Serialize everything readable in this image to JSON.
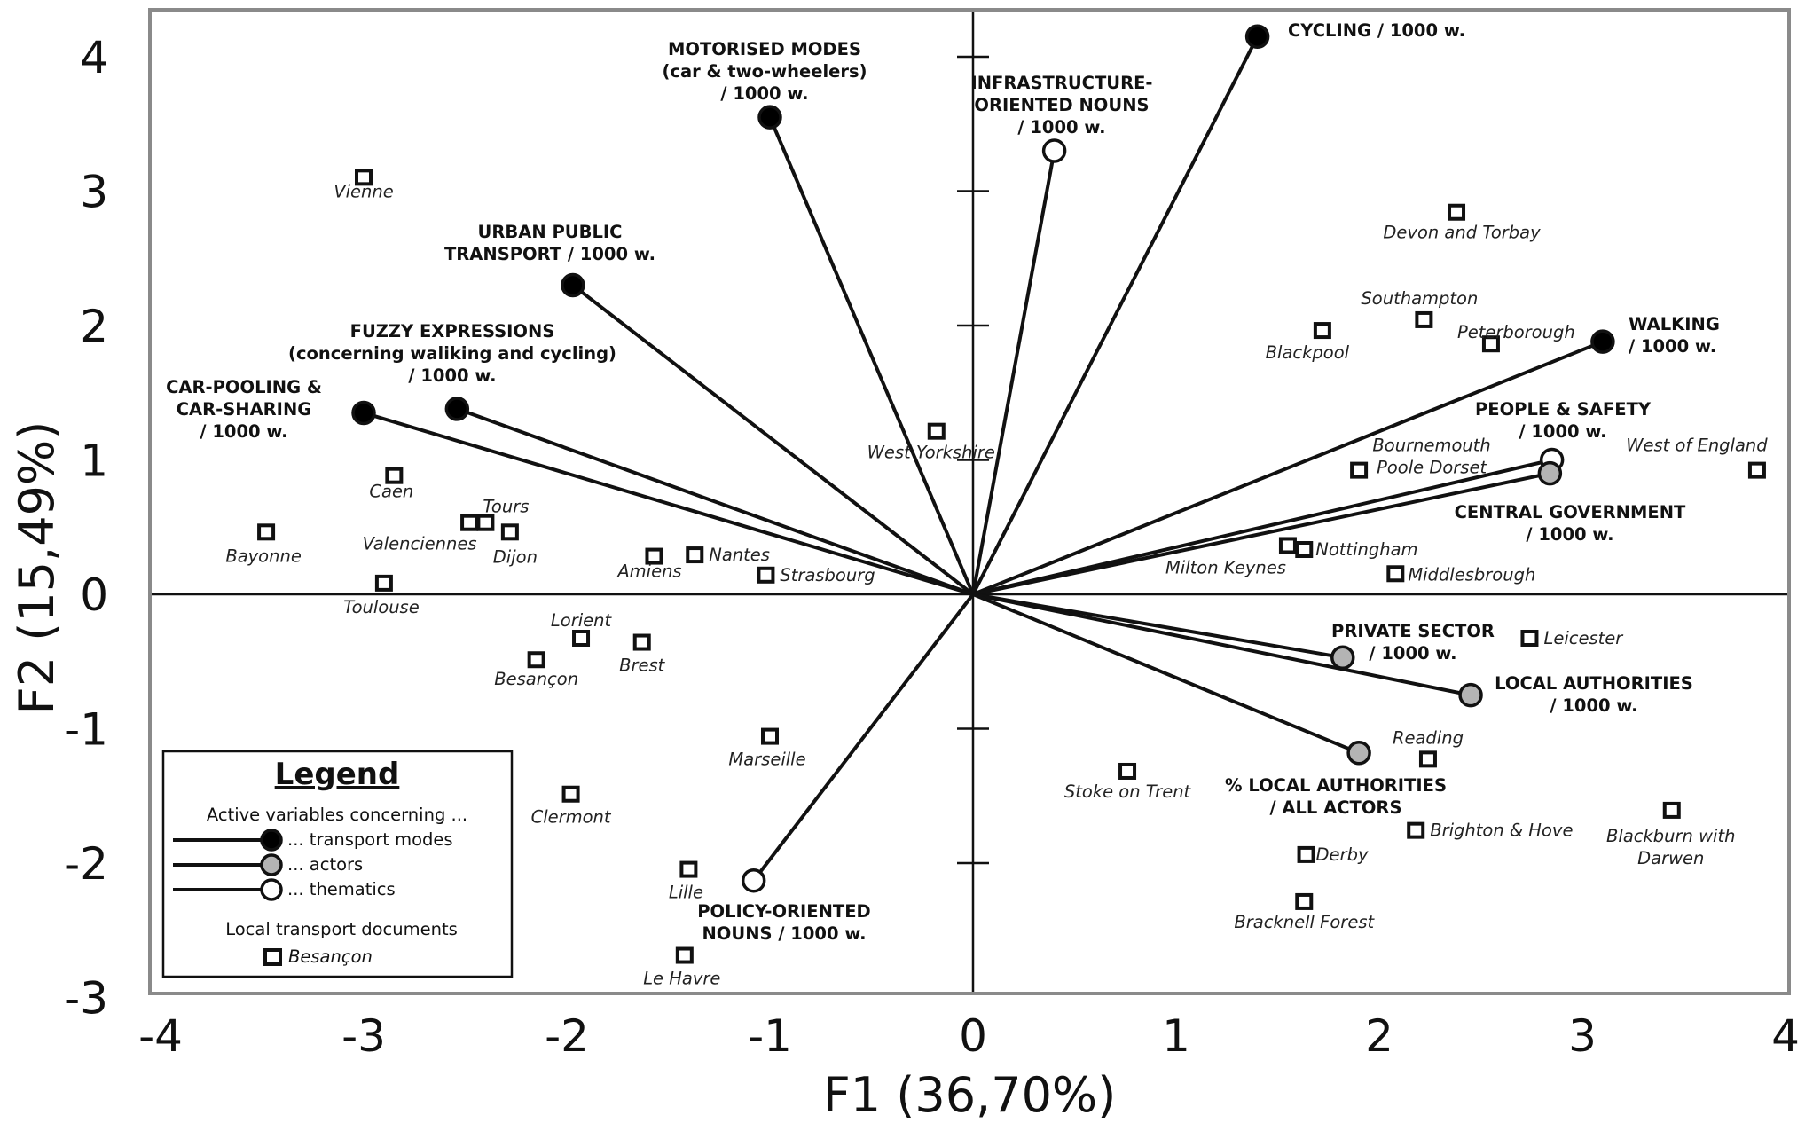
{
  "chart_data": {
    "type": "scatter",
    "xlabel": "F1 (36,70%)",
    "ylabel": "F2 (15,49%)",
    "xlim": [
      -4,
      4
    ],
    "ylim": [
      -3,
      4.3
    ],
    "x_ticks": [
      "-4",
      "-3",
      "-2",
      "-1",
      "0",
      "1",
      "2",
      "3",
      "4"
    ],
    "y_ticks": [
      "-3",
      "-2",
      "-1",
      "0",
      "1",
      "2",
      "3",
      "4"
    ],
    "grid": false,
    "legend": {
      "title": "Legend",
      "placement": "bottom-left",
      "header": "Active variables concerning ...",
      "entries": [
        {
          "label": "... transport modes",
          "fill": "#000000"
        },
        {
          "label": "... actors",
          "fill": "#b4b4b4"
        },
        {
          "label": "... thematics",
          "fill": "#ffffff"
        }
      ],
      "docs_header": "Local transport documents",
      "docs_example": "Besançon"
    },
    "variables": [
      {
        "group": "transport modes",
        "x": 1.4,
        "y": 4.15,
        "lines": [
          "CYCLING / 1000 w."
        ],
        "anchor": "start",
        "fill": "#000000"
      },
      {
        "group": "transport modes",
        "x": -1.0,
        "y": 3.55,
        "lines": [
          "MOTORISED MODES",
          "(car & two-wheelers)",
          "/ 1000 w."
        ],
        "anchor": "middle",
        "fill": "#000000"
      },
      {
        "group": "transport modes",
        "x": -1.97,
        "y": 2.3,
        "lines": [
          "URBAN PUBLIC",
          "TRANSPORT / 1000 w."
        ],
        "anchor": "middle",
        "fill": "#000000"
      },
      {
        "group": "transport modes",
        "x": -2.54,
        "y": 1.38,
        "lines": [
          "FUZZY EXPRESSIONS",
          "(concerning waliking and cycling)",
          "/ 1000 w."
        ],
        "anchor": "middle",
        "fill": "#000000"
      },
      {
        "group": "transport modes",
        "x": -3.0,
        "y": 1.35,
        "lines": [
          "CAR-POOLING &",
          "CAR-SHARING",
          "/ 1000 w."
        ],
        "anchor": "middle",
        "fill": "#000000"
      },
      {
        "group": "transport modes",
        "x": 3.1,
        "y": 1.88,
        "lines": [
          "WALKING",
          "/ 1000 w."
        ],
        "anchor": "start",
        "fill": "#000000"
      },
      {
        "group": "thematics",
        "x": 0.4,
        "y": 3.3,
        "lines": [
          "INFRASTRUCTURE-",
          "ORIENTED NOUNS",
          "/ 1000 w."
        ],
        "anchor": "middle",
        "fill": "#ffffff"
      },
      {
        "group": "thematics",
        "x": 2.85,
        "y": 1.0,
        "lines": [
          "PEOPLE & SAFETY",
          "/ 1000 w."
        ],
        "anchor": "middle",
        "fill": "#ffffff"
      },
      {
        "group": "thematics",
        "x": -1.08,
        "y": -2.13,
        "lines": [
          "POLICY-ORIENTED",
          "NOUNS / 1000 w."
        ],
        "anchor": "middle",
        "fill": "#ffffff"
      },
      {
        "group": "actors",
        "x": 2.84,
        "y": 0.9,
        "lines": [
          "CENTRAL GOVERNMENT",
          "/ 1000 w."
        ],
        "anchor": "middle",
        "fill": "#b4b4b4"
      },
      {
        "group": "actors",
        "x": 1.82,
        "y": -0.47,
        "lines": [
          "PRIVATE SECTOR",
          "/ 1000 w."
        ],
        "anchor": "middle",
        "fill": "#b4b4b4"
      },
      {
        "group": "actors",
        "x": 2.45,
        "y": -0.75,
        "lines": [
          "LOCAL AUTHORITIES",
          "/ 1000 w."
        ],
        "anchor": "middle",
        "fill": "#b4b4b4"
      },
      {
        "group": "actors",
        "x": 1.9,
        "y": -1.18,
        "lines": [
          "% LOCAL AUTHORITIES",
          "/ ALL ACTORS"
        ],
        "anchor": "middle",
        "fill": "#b4b4b4"
      }
    ],
    "documents": [
      {
        "name": "Vienne",
        "x": -3.0,
        "y": 3.1
      },
      {
        "name": "Caen",
        "x": -2.85,
        "y": 0.88
      },
      {
        "name": "Bayonne",
        "x": -3.48,
        "y": 0.46
      },
      {
        "name": "Tours",
        "x": -2.4,
        "y": 0.53
      },
      {
        "name": "Valenciennes",
        "x": -2.48,
        "y": 0.53
      },
      {
        "name": "Dijon",
        "x": -2.28,
        "y": 0.46
      },
      {
        "name": "Toulouse",
        "x": -2.9,
        "y": 0.08
      },
      {
        "name": "Amiens",
        "x": -1.57,
        "y": 0.28
      },
      {
        "name": "Nantes",
        "x": -1.37,
        "y": 0.29
      },
      {
        "name": "Strasbourg",
        "x": -1.02,
        "y": 0.14
      },
      {
        "name": "Lorient",
        "x": -1.93,
        "y": -0.33
      },
      {
        "name": "Brest",
        "x": -1.63,
        "y": -0.36
      },
      {
        "name": "Besançon",
        "x": -2.15,
        "y": -0.49
      },
      {
        "name": "Marseille",
        "x": -1.0,
        "y": -1.06
      },
      {
        "name": "Clermont",
        "x": -1.98,
        "y": -1.49
      },
      {
        "name": "Lille",
        "x": -1.4,
        "y": -2.05
      },
      {
        "name": "Le Havre",
        "x": -1.42,
        "y": -2.69
      },
      {
        "name": "West Yorkshire",
        "x": -0.18,
        "y": 1.21
      },
      {
        "name": "Devon and Torbay",
        "x": 2.38,
        "y": 2.84
      },
      {
        "name": "Southampton",
        "x": 2.22,
        "y": 2.04
      },
      {
        "name": "Blackpool",
        "x": 1.72,
        "y": 1.96
      },
      {
        "name": "Peterborough",
        "x": 2.55,
        "y": 1.86
      },
      {
        "name": "Bournemouth Poole Dorset",
        "lines": [
          "Bournemouth",
          "Poole Dorset"
        ],
        "x": 1.9,
        "y": 0.92
      },
      {
        "name": "West of England",
        "x": 3.86,
        "y": 0.92
      },
      {
        "name": "Milton Keynes",
        "x": 1.55,
        "y": 0.36
      },
      {
        "name": "Nottingham",
        "x": 1.63,
        "y": 0.33
      },
      {
        "name": "Middlesbrough",
        "x": 2.08,
        "y": 0.15
      },
      {
        "name": "Leicester",
        "x": 2.74,
        "y": -0.33
      },
      {
        "name": "Reading",
        "x": 2.24,
        "y": -1.23
      },
      {
        "name": "Stoke on Trent",
        "x": 0.76,
        "y": -1.32
      },
      {
        "name": "Blackburn with Darwen",
        "lines": [
          "Blackburn with",
          "Darwen"
        ],
        "x": 3.44,
        "y": -1.61
      },
      {
        "name": "Brighton & Hove",
        "x": 2.18,
        "y": -1.76
      },
      {
        "name": "Derby",
        "x": 1.64,
        "y": -1.94
      },
      {
        "name": "Bracknell Forest",
        "x": 1.63,
        "y": -2.29
      }
    ]
  }
}
